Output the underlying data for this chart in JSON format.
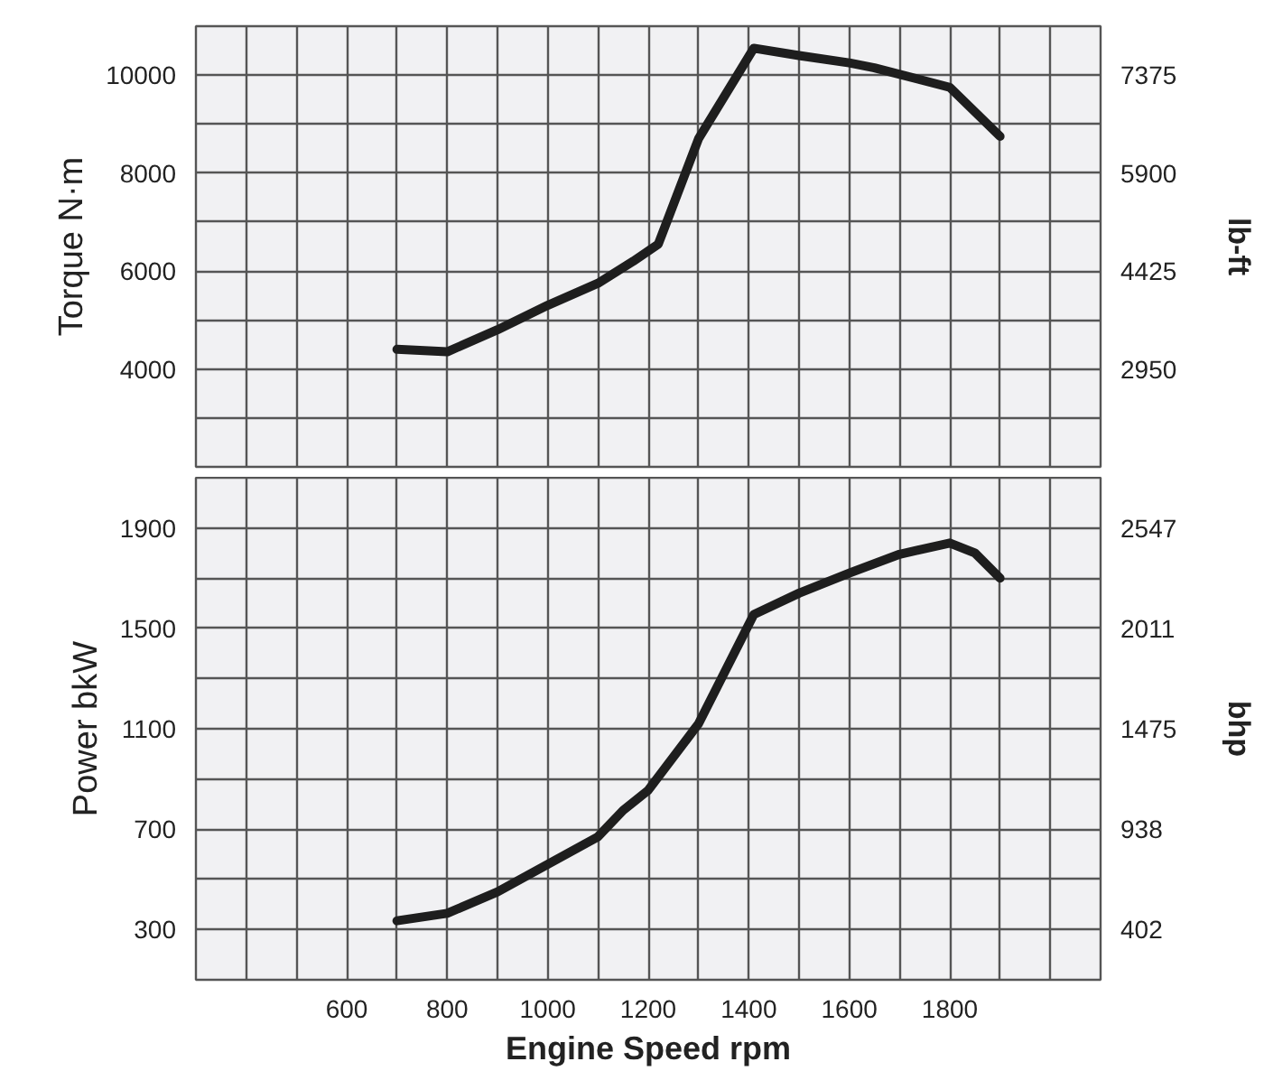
{
  "chart_data": [
    {
      "type": "line",
      "ylabel": "Torque N·m",
      "y2label": "lb-ft",
      "grid": true,
      "tick_labels": "y",
      "xlim": [
        300,
        2100
      ],
      "xticks": [
        {
          "value": 400,
          "label": null
        },
        {
          "value": 500,
          "label": null
        },
        600,
        {
          "value": 700,
          "label": null
        },
        800,
        {
          "value": 900,
          "label": null
        },
        1000,
        {
          "value": 1100,
          "label": null
        },
        1200,
        {
          "value": 1300,
          "label": null
        },
        1400,
        {
          "value": 1500,
          "label": null
        },
        1600,
        {
          "value": 1700,
          "label": null
        },
        1800,
        {
          "value": 1900,
          "label": null
        },
        {
          "value": 2000,
          "label": null
        }
      ],
      "ylim": [
        2000,
        11000
      ],
      "yticks": [
        {
          "value": 3000,
          "label": null
        },
        4000,
        {
          "value": 5000,
          "label": null
        },
        6000,
        {
          "value": 7000,
          "label": null
        },
        8000,
        {
          "value": 9000,
          "label": null
        },
        10000
      ],
      "y2lim": [
        1475,
        8112.5
      ],
      "y2ticks": [
        2950,
        4425,
        5900,
        7375
      ],
      "series": [
        {
          "color": "#1e1e1e",
          "x": [
            700,
            800,
            900,
            1000,
            1100,
            1170,
            1220,
            1300,
            1410,
            1500,
            1600,
            1650,
            1800,
            1900
          ],
          "values": [
            4400,
            4350,
            4800,
            5300,
            5750,
            6200,
            6550,
            8700,
            10550,
            10400,
            10250,
            10150,
            9750,
            8750
          ]
        }
      ]
    },
    {
      "type": "line",
      "ylabel": "Power bkW",
      "y2label": "bhp",
      "xlabel": "Engine Speed rpm",
      "grid": true,
      "xlim": [
        300,
        2100
      ],
      "xticks": [
        {
          "value": 400,
          "label": null
        },
        {
          "value": 500,
          "label": null
        },
        600,
        {
          "value": 700,
          "label": null
        },
        800,
        {
          "value": 900,
          "label": null
        },
        1000,
        {
          "value": 1100,
          "label": null
        },
        1200,
        {
          "value": 1300,
          "label": null
        },
        1400,
        {
          "value": 1500,
          "label": null
        },
        1600,
        {
          "value": 1700,
          "label": null
        },
        1800,
        {
          "value": 1900,
          "label": null
        },
        {
          "value": 2000,
          "label": null
        }
      ],
      "ylim": [
        100,
        2100
      ],
      "yticks": [
        300,
        {
          "value": 500,
          "label": null
        },
        700,
        {
          "value": 900,
          "label": null
        },
        1100,
        {
          "value": 1300,
          "label": null
        },
        1500,
        {
          "value": 1700,
          "label": null
        },
        1900
      ],
      "y2lim": [
        134,
        2815
      ],
      "y2ticks": [
        402,
        938,
        1475,
        2011,
        2547
      ],
      "series": [
        {
          "color": "#1e1e1e",
          "x": [
            700,
            800,
            900,
            1000,
            1100,
            1150,
            1200,
            1300,
            1410,
            1500,
            1600,
            1700,
            1800,
            1850,
            1900
          ],
          "values": [
            335,
            365,
            450,
            560,
            670,
            775,
            855,
            1120,
            1555,
            1640,
            1720,
            1795,
            1840,
            1800,
            1700
          ]
        }
      ]
    }
  ]
}
